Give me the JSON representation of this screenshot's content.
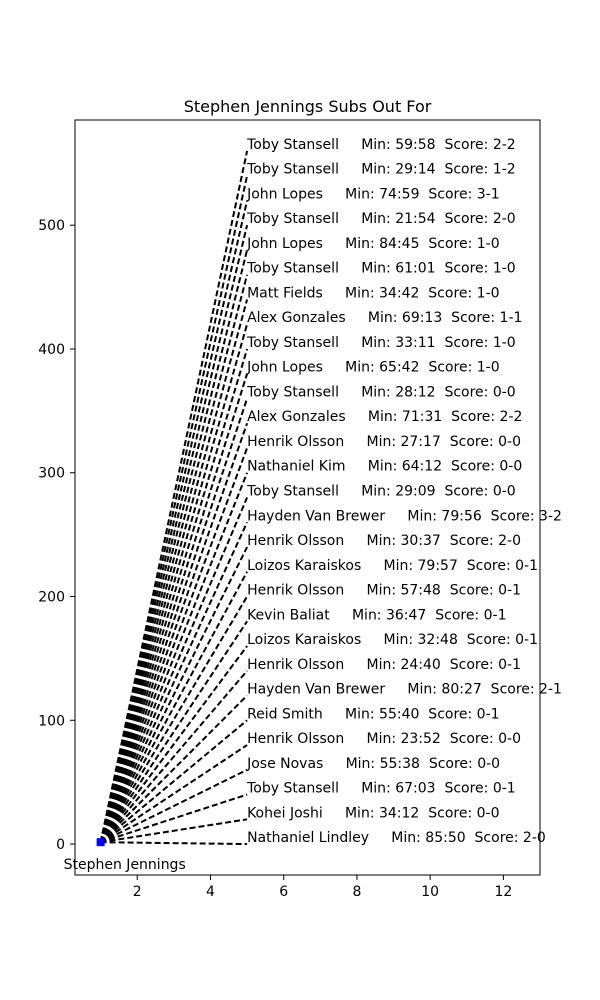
{
  "chart_data": {
    "type": "line",
    "title": "Stephen Jennings Subs Out For",
    "xlabel": "",
    "ylabel": "",
    "xlim": [
      0.3,
      13
    ],
    "ylim": [
      -25,
      585
    ],
    "x_ticks": [
      2,
      4,
      6,
      8,
      10,
      12
    ],
    "y_ticks": [
      0,
      100,
      200,
      300,
      400,
      500
    ],
    "grid": false,
    "legend": "none",
    "origin": {
      "label": "Stephen Jennings",
      "x": 1,
      "y": 1.5,
      "color": "#0000ff"
    },
    "line_style": "dashed",
    "line_color": "#000000",
    "line_end_x": 5,
    "entries": [
      {
        "player": "Nathaniel Lindley",
        "minute": "85:50",
        "score": "2-0",
        "y": 0
      },
      {
        "player": "Kohei Joshi",
        "minute": "34:12",
        "score": "0-0",
        "y": 20
      },
      {
        "player": "Toby Stansell",
        "minute": "67:03",
        "score": "0-1",
        "y": 40
      },
      {
        "player": "Jose Novas",
        "minute": "55:38",
        "score": "0-0",
        "y": 60
      },
      {
        "player": "Henrik Olsson",
        "minute": "23:52",
        "score": "0-0",
        "y": 80
      },
      {
        "player": "Reid Smith",
        "minute": "55:40",
        "score": "0-1",
        "y": 100
      },
      {
        "player": "Hayden Van Brewer",
        "minute": "80:27",
        "score": "2-1",
        "y": 120
      },
      {
        "player": "Henrik Olsson",
        "minute": "24:40",
        "score": "0-1",
        "y": 140
      },
      {
        "player": "Loizos Karaiskos",
        "minute": "32:48",
        "score": "0-1",
        "y": 160
      },
      {
        "player": "Kevin Baliat",
        "minute": "36:47",
        "score": "0-1",
        "y": 180
      },
      {
        "player": "Henrik Olsson",
        "minute": "57:48",
        "score": "0-1",
        "y": 200
      },
      {
        "player": "Loizos Karaiskos",
        "minute": "79:57",
        "score": "0-1",
        "y": 220
      },
      {
        "player": "Henrik Olsson",
        "minute": "30:37",
        "score": "2-0",
        "y": 240
      },
      {
        "player": "Hayden Van Brewer",
        "minute": "79:56",
        "score": "3-2",
        "y": 260
      },
      {
        "player": "Toby Stansell",
        "minute": "29:09",
        "score": "0-0",
        "y": 280
      },
      {
        "player": "Nathaniel Kim",
        "minute": "64:12",
        "score": "0-0",
        "y": 300
      },
      {
        "player": "Henrik Olsson",
        "minute": "27:17",
        "score": "0-0",
        "y": 320
      },
      {
        "player": "Alex Gonzales",
        "minute": "71:31",
        "score": "2-2",
        "y": 340
      },
      {
        "player": "Toby Stansell",
        "minute": "28:12",
        "score": "0-0",
        "y": 360
      },
      {
        "player": "John Lopes",
        "minute": "65:42",
        "score": "1-0",
        "y": 380
      },
      {
        "player": "Toby Stansell",
        "minute": "33:11",
        "score": "1-0",
        "y": 400
      },
      {
        "player": "Alex Gonzales",
        "minute": "69:13",
        "score": "1-1",
        "y": 420
      },
      {
        "player": "Matt Fields",
        "minute": "34:42",
        "score": "1-0",
        "y": 440
      },
      {
        "player": "Toby Stansell",
        "minute": "61:01",
        "score": "1-0",
        "y": 460
      },
      {
        "player": "John Lopes",
        "minute": "84:45",
        "score": "1-0",
        "y": 480
      },
      {
        "player": "Toby Stansell",
        "minute": "21:54",
        "score": "2-0",
        "y": 500
      },
      {
        "player": "John Lopes",
        "minute": "74:59",
        "score": "3-1",
        "y": 520
      },
      {
        "player": "Toby Stansell",
        "minute": "29:14",
        "score": "1-2",
        "y": 540
      },
      {
        "player": "Toby Stansell",
        "minute": "59:58",
        "score": "2-2",
        "y": 560
      }
    ]
  }
}
